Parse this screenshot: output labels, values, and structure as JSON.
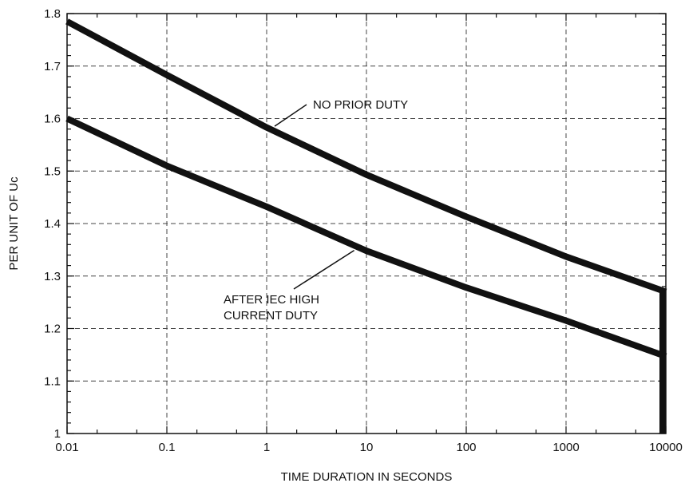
{
  "chart_data": {
    "type": "line",
    "xscale": "log",
    "xlim": [
      0.01,
      10000
    ],
    "ylim": [
      1.0,
      1.8
    ],
    "x_ticks": [
      0.01,
      0.1,
      1,
      10,
      100,
      1000,
      10000
    ],
    "x_tick_labels": [
      "0.01",
      "0.1",
      "1",
      "10",
      "100",
      "1000",
      "10000"
    ],
    "y_ticks": [
      1.0,
      1.1,
      1.2,
      1.3,
      1.4,
      1.5,
      1.6,
      1.7,
      1.8
    ],
    "y_tick_labels": [
      "1",
      "1.1",
      "1.2",
      "1.3",
      "1.4",
      "1.5",
      "1.6",
      "1.7",
      "1.8"
    ],
    "xlabel": "TIME DURATION IN SECONDS",
    "ylabel": "PER UNIT OF Uc",
    "grid": true,
    "series": [
      {
        "x": [
          0.01,
          0.1,
          1,
          10,
          100,
          1000,
          10000
        ],
        "y": [
          1.785,
          1.683,
          1.583,
          1.493,
          1.413,
          1.337,
          1.27
        ]
      },
      {
        "x": [
          0.01,
          0.1,
          1,
          10,
          100,
          1000,
          10000
        ],
        "y": [
          1.6,
          1.51,
          1.432,
          1.348,
          1.278,
          1.215,
          1.147
        ]
      }
    ],
    "vertical_line": {
      "x": 10000,
      "y_from": 1.0,
      "y_to": 1.27
    },
    "annotations": [
      {
        "lines": [
          "NO PRIOR DUTY"
        ],
        "arrow_to": {
          "x": 1.0,
          "y": 1.59
        }
      },
      {
        "lines": [
          "AFTER IEC HIGH",
          "CURRENT DUTY"
        ],
        "arrow_to": {
          "x": 7.0,
          "y": 1.355
        }
      }
    ]
  }
}
